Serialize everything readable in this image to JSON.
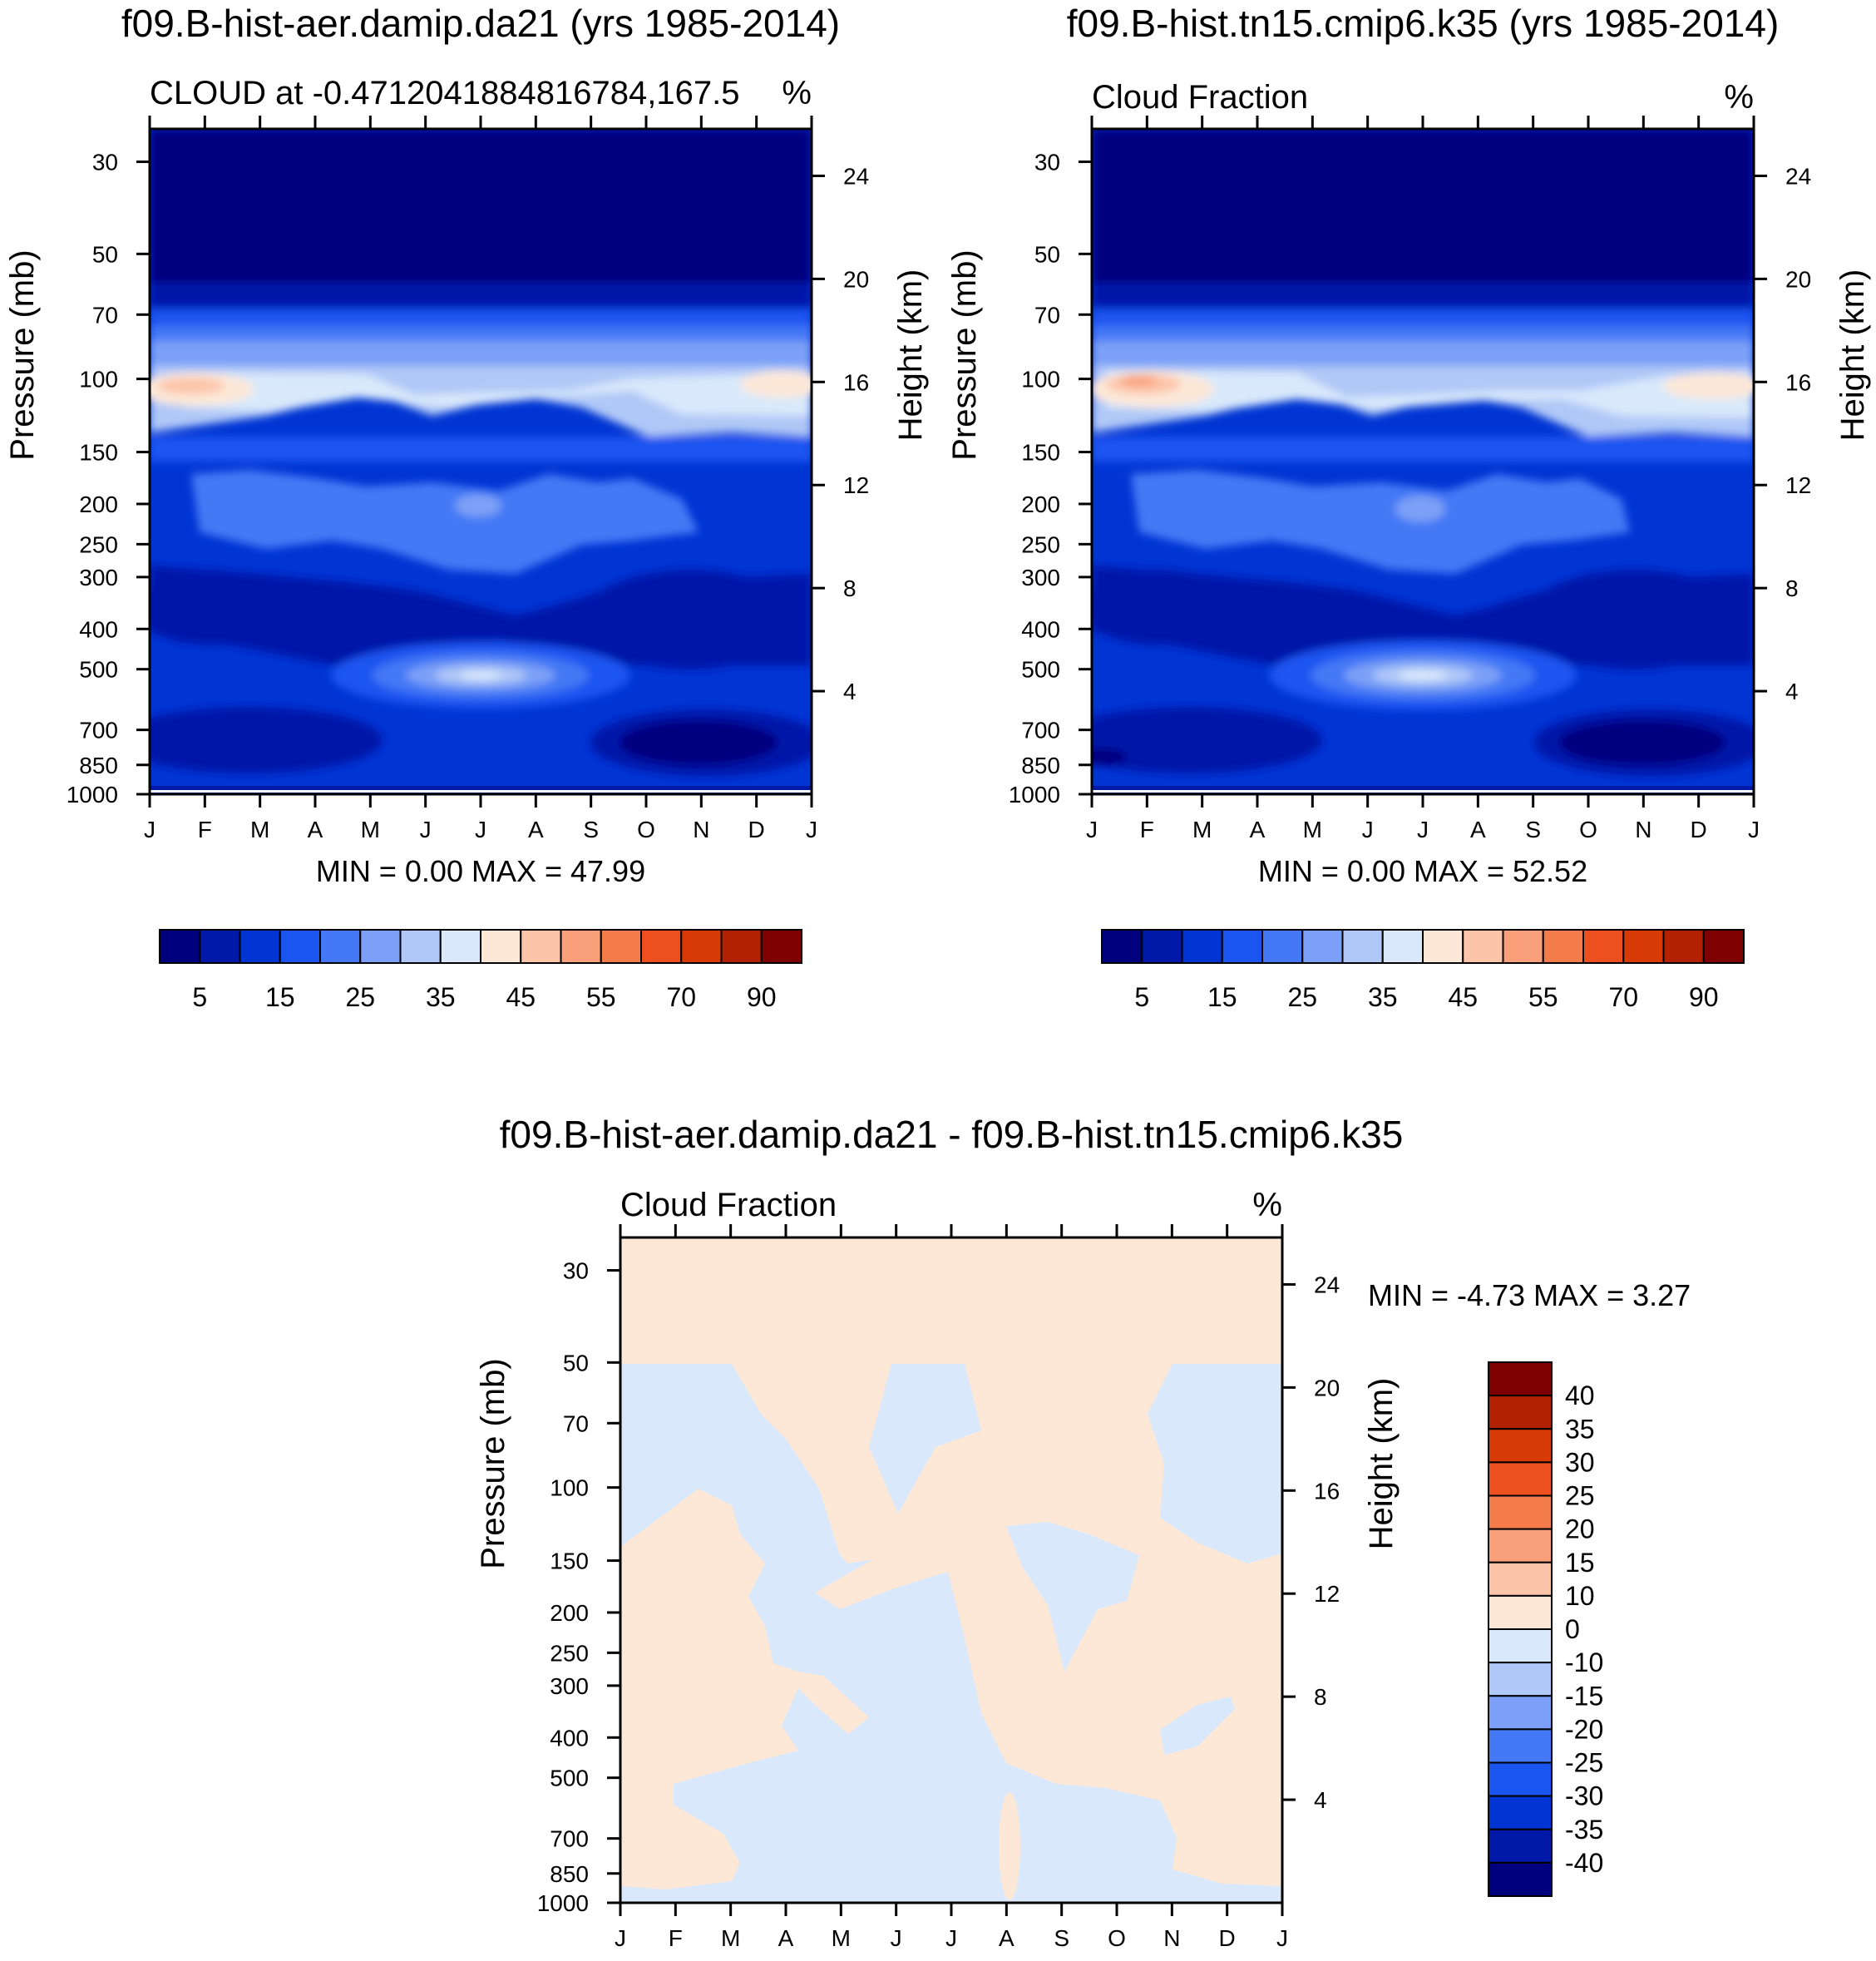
{
  "chart_data": [
    {
      "type": "contour",
      "title": "f09.B-hist-aer.damip.da21 (yrs 1985-2014)",
      "subtitle_left": "CLOUD at -0.4712041884816784,167.5",
      "subtitle_right": "%",
      "ylabel": "Pressure (mb)",
      "ylabel_right": "Height (km)",
      "x_ticks": [
        "J",
        "F",
        "M",
        "A",
        "M",
        "J",
        "J",
        "A",
        "S",
        "O",
        "N",
        "D",
        "J"
      ],
      "y_ticks": [
        "30",
        "50",
        "70",
        "100",
        "150",
        "200",
        "250",
        "300",
        "400",
        "500",
        "700",
        "850",
        "1000"
      ],
      "y_ticks_right": [
        "24",
        "20",
        "16",
        "12",
        "8",
        "4"
      ],
      "min_max_text": "MIN =    0.00 MAX =  47.99",
      "min": 0.0,
      "max": 47.99,
      "colorbar_labels": [
        "5",
        "15",
        "25",
        "35",
        "45",
        "55",
        "70",
        "90"
      ],
      "colorbar_colors": [
        "#00007f",
        "#0019a9",
        "#0035d3",
        "#1a55f0",
        "#4578f5",
        "#7ca0f7",
        "#b0c8f7",
        "#d9e9fb",
        "#fde8d8",
        "#fcc5aa",
        "#f9a07a",
        "#f47b4a",
        "#ee4f1e",
        "#d83a05",
        "#b22202",
        "#7f0000"
      ],
      "fill_levels": [
        {
          "level": "0-5",
          "color": "#00007f"
        },
        {
          "level": "5-10",
          "color": "#0019a9"
        },
        {
          "level": "10-15",
          "color": "#0035d3"
        },
        {
          "level": "15-20",
          "color": "#1a55f0"
        },
        {
          "level": "20-25",
          "color": "#4578f5"
        },
        {
          "level": "25-30",
          "color": "#7ca0f7"
        },
        {
          "level": "30-35",
          "color": "#b0c8f7"
        },
        {
          "level": "35-40",
          "color": "#d9e9fb"
        },
        {
          "level": "40-45",
          "color": "#fde8d8"
        },
        {
          "level": "45-50",
          "color": "#fcc5aa"
        }
      ]
    },
    {
      "type": "contour",
      "title": "f09.B-hist.tn15.cmip6.k35 (yrs 1985-2014)",
      "subtitle_left": "Cloud Fraction",
      "subtitle_right": "%",
      "ylabel": "Pressure (mb)",
      "ylabel_right": "Height (km)",
      "x_ticks": [
        "J",
        "F",
        "M",
        "A",
        "M",
        "J",
        "J",
        "A",
        "S",
        "O",
        "N",
        "D",
        "J"
      ],
      "y_ticks": [
        "30",
        "50",
        "70",
        "100",
        "150",
        "200",
        "250",
        "300",
        "400",
        "500",
        "700",
        "850",
        "1000"
      ],
      "y_ticks_right": [
        "24",
        "20",
        "16",
        "12",
        "8",
        "4"
      ],
      "min_max_text": "MIN =    0.00 MAX =  52.52",
      "min": 0.0,
      "max": 52.52,
      "colorbar_labels": [
        "5",
        "15",
        "25",
        "35",
        "45",
        "55",
        "70",
        "90"
      ],
      "colorbar_colors": [
        "#00007f",
        "#0019a9",
        "#0035d3",
        "#1a55f0",
        "#4578f5",
        "#7ca0f7",
        "#b0c8f7",
        "#d9e9fb",
        "#fde8d8",
        "#fcc5aa",
        "#f9a07a",
        "#f47b4a",
        "#ee4f1e",
        "#d83a05",
        "#b22202",
        "#7f0000"
      ]
    },
    {
      "type": "contour-difference",
      "title": "f09.B-hist-aer.damip.da21 - f09.B-hist.tn15.cmip6.k35",
      "subtitle_left": "Cloud Fraction",
      "subtitle_right": "%",
      "ylabel": "Pressure (mb)",
      "ylabel_right": "Height (km)",
      "x_ticks": [
        "J",
        "F",
        "M",
        "A",
        "M",
        "J",
        "J",
        "A",
        "S",
        "O",
        "N",
        "D",
        "J"
      ],
      "y_ticks": [
        "30",
        "50",
        "70",
        "100",
        "150",
        "200",
        "250",
        "300",
        "400",
        "500",
        "700",
        "850",
        "1000"
      ],
      "y_ticks_right": [
        "24",
        "20",
        "16",
        "12",
        "8",
        "4"
      ],
      "min_max_text": "MIN =  -4.73 MAX =   3.27",
      "min": -4.73,
      "max": 3.27,
      "colorbar_labels": [
        "40",
        "35",
        "30",
        "25",
        "20",
        "15",
        "10",
        "0",
        "-10",
        "-15",
        "-20",
        "-25",
        "-30",
        "-35",
        "-40"
      ],
      "colorbar_colors": [
        "#7f0000",
        "#b22202",
        "#d83a05",
        "#ee4f1e",
        "#f47b4a",
        "#f9a07a",
        "#fcc5aa",
        "#fde8d8",
        "#d9e9fb",
        "#b0c8f7",
        "#7ca0f7",
        "#4578f5",
        "#1a55f0",
        "#0035d3",
        "#0019a9",
        "#00007f"
      ],
      "fill_levels": [
        {
          "level": "0 to 10",
          "color": "#fde8d8"
        },
        {
          "level": "-10 to 0",
          "color": "#d9e9fb"
        }
      ]
    }
  ]
}
